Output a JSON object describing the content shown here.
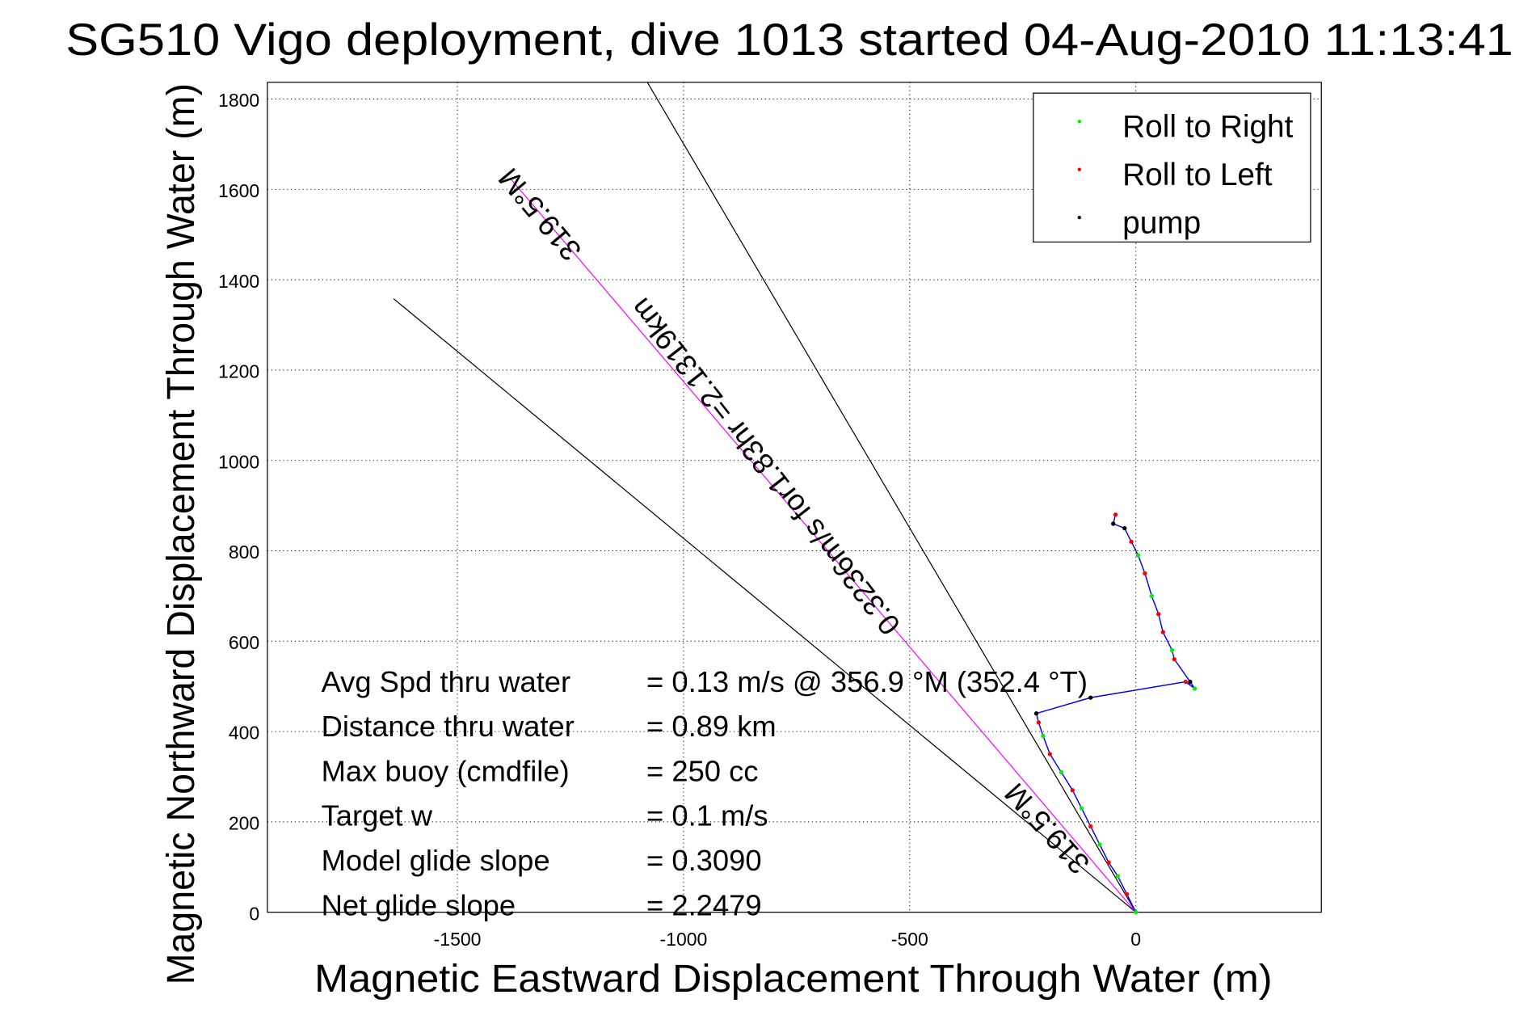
{
  "chart_data": {
    "type": "line",
    "title": "SG510 Vigo deployment, dive 1013 started 04-Aug-2010 11:13:41",
    "xlabel": "Magnetic Eastward Displacement Through Water (m)",
    "ylabel": "Magnetic Northward Displacement Through Water (m)",
    "xlim": [
      -1920,
      410
    ],
    "ylim": [
      0,
      1837
    ],
    "xticks": [
      -1500,
      -1000,
      -500,
      0
    ],
    "xtick_labels": [
      "-1500",
      "-1000",
      "-500",
      "0"
    ],
    "yticks": [
      0,
      200,
      400,
      600,
      800,
      1000,
      1200,
      1400,
      1600,
      1800
    ],
    "ytick_labels": [
      "0",
      "200",
      "400",
      "600",
      "800",
      "1000",
      "1200",
      "1400",
      "1600",
      "1800"
    ],
    "grid": true,
    "legend_position": "top-right",
    "legend": [
      {
        "label": "Roll to Right",
        "color": "#00ee00"
      },
      {
        "label": "Roll to Left",
        "color": "#ff0000"
      },
      {
        "label": "pump",
        "color": "#000000"
      }
    ],
    "reference_lines": [
      {
        "name": "bound-line-1",
        "color": "#000000",
        "x": [
          0,
          -1080
        ],
        "y": [
          0,
          1837
        ]
      },
      {
        "name": "bound-line-2",
        "color": "#000000",
        "x": [
          0,
          -1641
        ],
        "y": [
          0,
          1358
        ]
      },
      {
        "name": "heading-line",
        "color": "#ff00ff",
        "x": [
          0,
          -1381
        ],
        "y": [
          0,
          1622
        ]
      }
    ],
    "trajectory": {
      "color": "#0000ff",
      "x": [
        0,
        -20,
        -40,
        -60,
        -80,
        -100,
        -120,
        -140,
        -165,
        -190,
        -205,
        -215,
        -220,
        -100,
        110,
        130,
        120,
        85,
        80,
        60,
        50,
        35,
        20,
        5,
        -10,
        -25,
        -50,
        -45
      ],
      "y": [
        0,
        40,
        80,
        110,
        150,
        190,
        230,
        270,
        310,
        350,
        390,
        420,
        440,
        475,
        510,
        495,
        510,
        560,
        580,
        620,
        660,
        700,
        750,
        790,
        820,
        850,
        860,
        880
      ],
      "marker_class": [
        "right",
        "left",
        "right",
        "left",
        "right",
        "left",
        "right",
        "left",
        "right",
        "left",
        "right",
        "left",
        "pump",
        "pump",
        "left",
        "right",
        "pump",
        "left",
        "right",
        "left",
        "left",
        "right",
        "left",
        "right",
        "left",
        "pump",
        "pump",
        "left"
      ]
    },
    "annotations": [
      {
        "text": "319.5°M",
        "x": -1095,
        "y": 1370,
        "angle": -130
      },
      {
        "text": "0.3236m/s for1.83hr =2.1319km",
        "x": -620,
        "y": 510,
        "angle": -128
      },
      {
        "text": "319.5°M",
        "x": -180,
        "y": 200,
        "angle": -132
      }
    ],
    "stats": [
      {
        "label": "Avg Spd thru water",
        "value": "=  0.13 m/s @ 356.9 °M (352.4 °T)"
      },
      {
        "label": "Distance thru water",
        "value": "=  0.89 km"
      },
      {
        "label": "Max buoy (cmdfile)",
        "value": "= 250 cc"
      },
      {
        "label": "Target w",
        "value": "= 0.1 m/s"
      },
      {
        "label": "Model glide slope",
        "value": "= 0.3090"
      },
      {
        "label": "Net glide slope",
        "value": "= 2.2479"
      }
    ]
  }
}
